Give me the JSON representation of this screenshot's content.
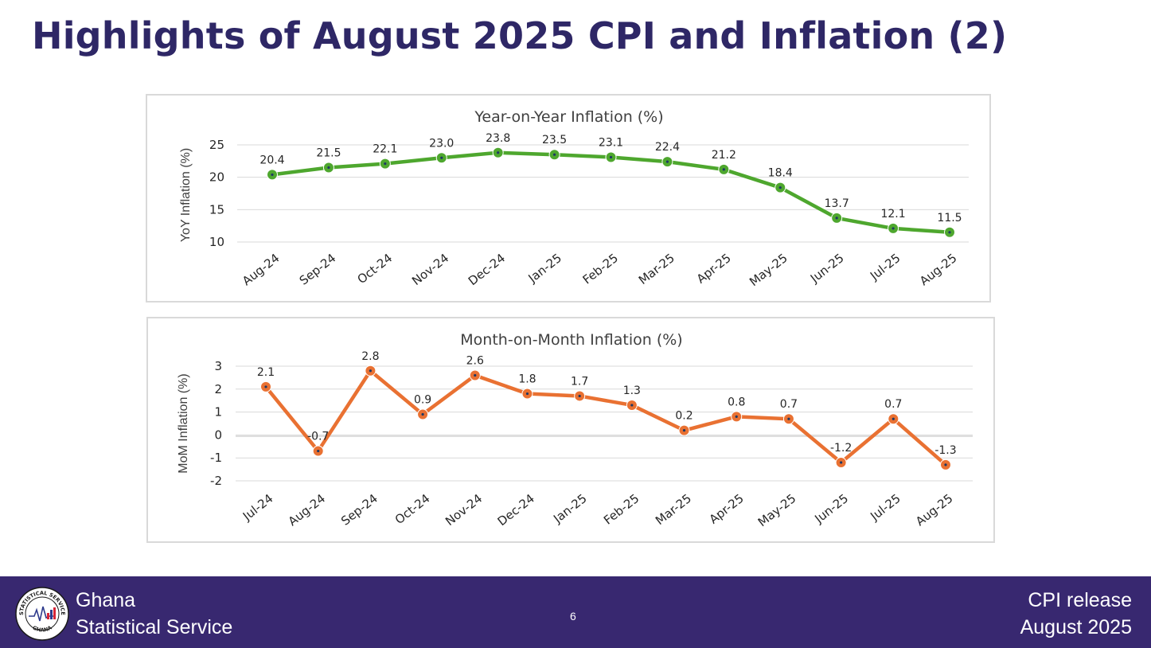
{
  "slide": {
    "title": "Highlights of August 2025 CPI and Inflation (2)",
    "page_number": "6"
  },
  "footer": {
    "org_line1": "Ghana",
    "org_line2": "Statistical Service",
    "release_line1": "CPI release",
    "release_line2": "August  2025",
    "logo_text_top": "STATISTICAL SERVICE",
    "logo_text_bottom": "GHANA"
  },
  "colors": {
    "title": "#2e2766",
    "footer_bg": "#382870",
    "yoy_series": "#4ea72e",
    "mom_series": "#e97132"
  },
  "chart_data": [
    {
      "type": "line",
      "title": "Year-on-Year Inflation (%)",
      "ylabel": "YoY Inflation (%)",
      "xlabel": "",
      "categories": [
        "Aug-24",
        "Sep-24",
        "Oct-24",
        "Nov-24",
        "Dec-24",
        "Jan-25",
        "Feb-25",
        "Mar-25",
        "Apr-25",
        "May-25",
        "Jun-25",
        "Jul-25",
        "Aug-25"
      ],
      "series": [
        {
          "values": [
            20.4,
            21.5,
            22.1,
            23.0,
            23.8,
            23.5,
            23.1,
            22.4,
            21.2,
            18.4,
            13.7,
            12.1,
            11.5
          ],
          "labels": [
            "20.4",
            "21.5",
            "22.1",
            "23.0",
            "23.8",
            "23.5",
            "23.1",
            "22.4",
            "21.2",
            "18.4",
            "13.7",
            "12.1",
            "11.5"
          ],
          "color": "#4ea72e"
        }
      ],
      "ylim": [
        10,
        25
      ],
      "yticks": [
        10,
        15,
        20,
        25
      ],
      "grid": true,
      "legend": "none"
    },
    {
      "type": "line",
      "title": "Month-on-Month Inflation (%)",
      "ylabel": "MoM Inflation (%)",
      "xlabel": "",
      "categories": [
        "Jul-24",
        "Aug-24",
        "Sep-24",
        "Oct-24",
        "Nov-24",
        "Dec-24",
        "Jan-25",
        "Feb-25",
        "Mar-25",
        "Apr-25",
        "May-25",
        "Jun-25",
        "Jul-25",
        "Aug-25"
      ],
      "series": [
        {
          "values": [
            2.1,
            -0.7,
            2.8,
            0.9,
            2.6,
            1.8,
            1.7,
            1.3,
            0.2,
            0.8,
            0.7,
            -1.2,
            0.7,
            -1.3
          ],
          "labels": [
            "2.1",
            "-0.7",
            "2.8",
            "0.9",
            "2.6",
            "1.8",
            "1.7",
            "1.3",
            "0.2",
            "0.8",
            "0.7",
            "-1.2",
            "0.7",
            "-1.3"
          ],
          "color": "#e97132"
        }
      ],
      "ylim": [
        -2,
        3
      ],
      "yticks": [
        -2,
        -1,
        0,
        1,
        2,
        3
      ],
      "grid": true,
      "legend": "none"
    }
  ]
}
